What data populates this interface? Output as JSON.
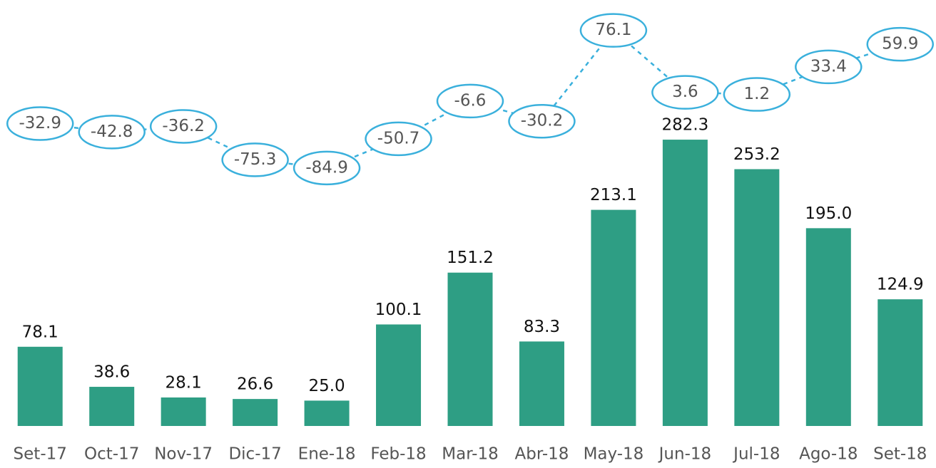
{
  "chart_data": {
    "type": "bar",
    "categories": [
      "Set-17",
      "Oct-17",
      "Nov-17",
      "Dic-17",
      "Ene-18",
      "Feb-18",
      "Mar-18",
      "Abr-18",
      "May-18",
      "Jun-18",
      "Jul-18",
      "Ago-18",
      "Set-18"
    ],
    "series": [
      {
        "type": "bar",
        "color": "#2e9e84",
        "values": [
          78.1,
          38.6,
          28.1,
          26.6,
          25.0,
          100.1,
          151.2,
          83.3,
          213.1,
          282.3,
          253.2,
          195.0,
          124.9
        ],
        "value_labels": [
          "78.1",
          "38.6",
          "28.1",
          "26.6",
          "25.0",
          "100.1",
          "151.2",
          "83.3",
          "213.1",
          "282.3",
          "253.2",
          "195.0",
          "124.9"
        ]
      },
      {
        "type": "line",
        "axis": "y2",
        "color": "#3ab0dc",
        "values": [
          -32.9,
          -42.8,
          -36.2,
          -75.3,
          -84.9,
          -50.7,
          -6.6,
          -30.2,
          76.1,
          3.6,
          1.2,
          33.4,
          59.9
        ]
      }
    ],
    "ylim": [
      0,
      420
    ],
    "y2lim": [
      -100,
      100
    ],
    "grid": false
  }
}
